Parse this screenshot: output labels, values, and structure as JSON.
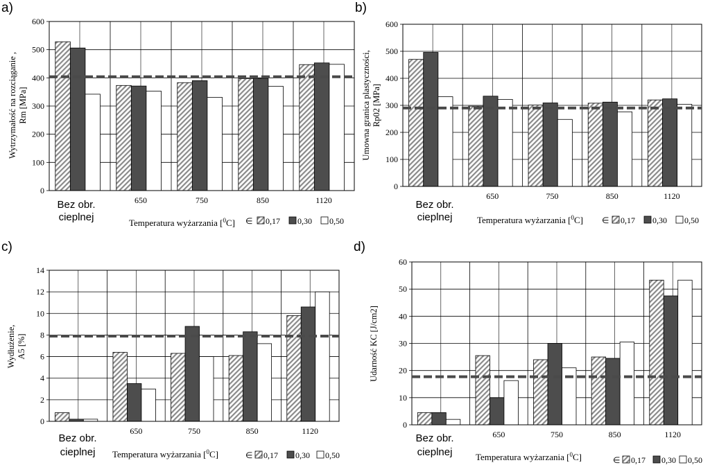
{
  "chart_data": [
    {
      "type": "bar",
      "panel": "a)",
      "categories": [
        "Bez obr. cieplnej",
        "650",
        "750",
        "850",
        "1120"
      ],
      "first_category_lines": [
        "Bez obr.",
        "cieplnej"
      ],
      "series": [
        {
          "name": "0,17",
          "values": [
            528,
            373,
            383,
            397,
            447
          ]
        },
        {
          "name": "0,30",
          "values": [
            506,
            371,
            390,
            398,
            453
          ]
        },
        {
          "name": "0,50",
          "values": [
            342,
            353,
            331,
            370,
            448
          ]
        }
      ],
      "ylabel_lines": [
        "Wytrzymałość na rozciąganie ,",
        "Rm [MPa]"
      ],
      "xlabel": "Temperatura wyżarzania [0C]",
      "xlabel_parts": [
        "Temperatura wyżarzania [",
        "0",
        "C]"
      ],
      "ylim": [
        0,
        600
      ],
      "yticks": [
        0,
        100,
        200,
        300,
        400,
        500,
        600
      ],
      "reference_line": 404,
      "legend_symbol": "∈"
    },
    {
      "type": "bar",
      "panel": "b)",
      "categories": [
        "Bez obr. cieplnej",
        "650",
        "750",
        "850",
        "1120"
      ],
      "first_category_lines": [
        "Bez obr.",
        "cieplnej"
      ],
      "series": [
        {
          "name": "0,17",
          "values": [
            470,
            297,
            301,
            308,
            320
          ]
        },
        {
          "name": "0,30",
          "values": [
            496,
            334,
            309,
            312,
            324
          ]
        },
        {
          "name": "0,50",
          "values": [
            332,
            322,
            248,
            276,
            304
          ]
        }
      ],
      "ylabel_lines": [
        "Umowna granica plastyczności,",
        "Rp02 [MPa]"
      ],
      "xlabel": "Temperatura wyżarzania [0C]",
      "xlabel_parts": [
        "Temperatura wyżarzania [",
        "0",
        "C]"
      ],
      "ylim": [
        0,
        600
      ],
      "yticks": [
        0,
        100,
        200,
        300,
        400,
        500,
        600
      ],
      "reference_line": 290,
      "legend_symbol": "∈"
    },
    {
      "type": "bar",
      "panel": "c)",
      "categories": [
        "Bez obr. cieplnej",
        "650",
        "750",
        "850",
        "1120"
      ],
      "first_category_lines": [
        "Bez obr.",
        "cieplnej"
      ],
      "series": [
        {
          "name": "0,17",
          "values": [
            0.8,
            6.4,
            6.3,
            6.1,
            9.8
          ]
        },
        {
          "name": "0,30",
          "values": [
            0.2,
            3.5,
            8.8,
            8.3,
            10.6
          ]
        },
        {
          "name": "0,50",
          "values": [
            0.2,
            3.0,
            6.0,
            7.2,
            12.0
          ]
        }
      ],
      "ylabel_lines": [
        "Wydłużenie,",
        "A5 [%]"
      ],
      "xlabel": "Temperatura wyżarzania [0C]",
      "xlabel_parts": [
        "Temperatura wyżarzania [",
        "0",
        "C]"
      ],
      "ylim": [
        0,
        14
      ],
      "yticks": [
        0,
        2,
        4,
        6,
        8,
        10,
        12,
        14
      ],
      "reference_line": 7.9,
      "legend_symbol": "∈"
    },
    {
      "type": "bar",
      "panel": "d)",
      "categories": [
        "Bez obr. cieplnej",
        "650",
        "750",
        "850",
        "1120"
      ],
      "first_category_lines": [
        "Bez obr.",
        "cieplnej"
      ],
      "series": [
        {
          "name": "0,17",
          "values": [
            4.5,
            25.5,
            24,
            25,
            53.3
          ]
        },
        {
          "name": "0,30",
          "values": [
            4.5,
            10,
            30,
            24.5,
            47.5
          ]
        },
        {
          "name": "0,50",
          "values": [
            2,
            16.3,
            21,
            30.5,
            53.3
          ]
        }
      ],
      "ylabel_lines": [
        "Udarność KC [J/cm2]"
      ],
      "xlabel": "Temperatura wyżarzania [0C]",
      "xlabel_parts": [
        "Temperatura wyżarzania [",
        "0",
        "C]"
      ],
      "ylim": [
        0,
        60
      ],
      "yticks": [
        0,
        10,
        20,
        30,
        40,
        50,
        60
      ],
      "reference_line": 17.7,
      "legend_symbol": "∈"
    }
  ]
}
